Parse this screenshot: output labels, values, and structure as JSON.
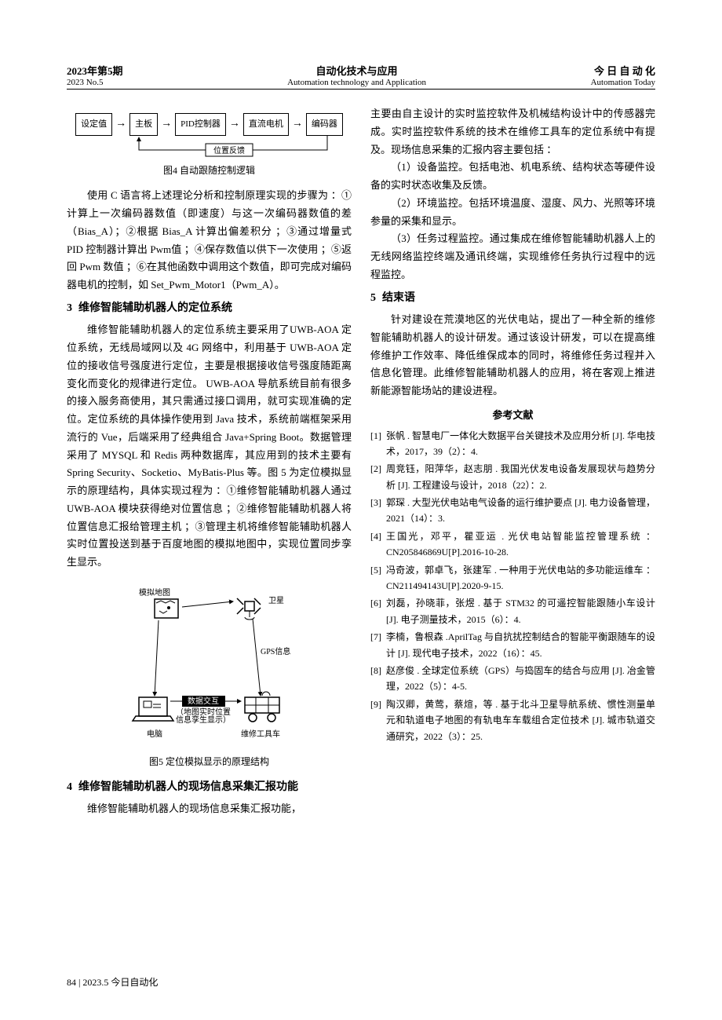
{
  "header": {
    "left_line1": "2023年第5期",
    "left_line2": "2023 No.5",
    "center_line1": "自动化技术与应用",
    "center_line2": "Automation technology and Application",
    "right_line1": "今 日 自 动 化",
    "right_line2": "Automation Today"
  },
  "fig4": {
    "boxes": [
      "设定值",
      "主板",
      "PID控制器",
      "直流电机",
      "编码器"
    ],
    "feedback_label": "位置反馈",
    "caption": "图4   自动跟随控制逻辑"
  },
  "col_left": {
    "p1": "使用 C 语言将上述理论分析和控制原理实现的步骤为 ：①计算上一次编码器数值（即速度）与这一次编码器数值的差（Bias_A）；②根据 Bias_A 计算出偏差积分 ；③通过增量式 PID 控制器计算出 Pwm值 ；④保存数值以供下一次使用 ；⑤返回 Pwm 数值 ；⑥在其他函数中调用这个数值，即可完成对编码器电机的控制，如 Set_Pwm_Motor1（Pwm_A）。",
    "sec3_num": "3",
    "sec3_title": "维修智能辅助机器人的定位系统",
    "p2": "维修智能辅助机器人的定位系统主要采用了UWB-AOA 定位系统，无线局域网以及 4G 网络中，利用基于 UWB-AOA 定位的接收信号强度进行定位，主要是根据接收信号强度随距离变化而变化的规律进行定位。 UWB-AOA 导航系统目前有很多的接入服务商使用，其只需通过接口调用，就可实现准确的定位。定位系统的具体操作使用到 Java 技术，系统前端框架采用流行的 Vue，后端采用了经典组合 Java+Spring Boot。数据管理采用了 MYSQL 和 Redis 两种数据库，其应用到的技术主要有 Spring Security、Socketio、MyBatis-Plus 等。图 5 为定位模拟显示的原理结构，具体实现过程为 ：①维修智能辅助机器人通过 UWB-AOA 模块获得绝对位置信息 ；②维修智能辅助机器人将位置信息汇报给管理主机 ；③管理主机将维修智能辅助机器人实时位置投送到基于百度地图的模拟地图中，实现位置同步孪生显示。",
    "sec4_num": "4",
    "sec4_title": "维修智能辅助机器人的现场信息采集汇报功能",
    "p3": "维修智能辅助机器人的现场信息采集汇报功能，"
  },
  "fig5": {
    "labels": {
      "map": "模拟地图",
      "sat": "卫星",
      "gps": "GPS信息",
      "exchange": "数据交互",
      "note": "（地图实时位置\n信息孪生显示）",
      "pc": "电脑",
      "cart": "维修工具车"
    },
    "caption": "图5   定位模拟显示的原理结构"
  },
  "col_right": {
    "p1": "主要由自主设计的实时监控软件及机械结构设计中的传感器完成。实时监控软件系统的技术在维修工具车的定位系统中有提及。现场信息采集的汇报内容主要包括 ：",
    "p2": "（1）设备监控。包括电池、机电系统、结构状态等硬件设备的实时状态收集及反馈。",
    "p3": "（2）环境监控。包括环境温度、湿度、风力、光照等环境参量的采集和显示。",
    "p4": "（3）任务过程监控。通过集成在维修智能辅助机器人上的无线网络监控终端及通讯终端，实现维修任务执行过程中的远程监控。",
    "sec5_num": "5",
    "sec5_title": "结束语",
    "p5": "针对建设在荒漠地区的光伏电站，提出了一种全新的维修智能辅助机器人的设计研发。通过该设计研发，可以在提高维修维护工作效率、降低维保成本的同时，将维修任务过程并入信息化管理。此维修智能辅助机器人的应用，将在客观上推进新能源智能场站的建设进程。",
    "refs_title": "参考文献"
  },
  "references": [
    {
      "n": "[1]",
      "t": "张帆 . 智慧电厂一体化大数据平台关键技术及应用分析 [J]. 华电技术，2017，39（2）：4."
    },
    {
      "n": "[2]",
      "t": "周竞钰，阳萍华，赵志朋 . 我国光伏发电设备发展现状与趋势分析 [J]. 工程建设与设计，2018（22）：2."
    },
    {
      "n": "[3]",
      "t": "郭琛 . 大型光伏电站电气设备的运行维护要点 [J]. 电力设备管理，2021（14）：3."
    },
    {
      "n": "[4]",
      "t": "王国光，邓平，瞿亚运 . 光伏电站智能监控管理系统 ：CN205846869U[P].2016-10-28."
    },
    {
      "n": "[5]",
      "t": "冯奇波，郭卓飞，张建军 . 一种用于光伏电站的多功能运维车 ：CN211494143U[P].2020-9-15."
    },
    {
      "n": "[6]",
      "t": "刘磊，孙晓菲，张煜 . 基于 STM32 的可遥控智能跟随小车设计 [J]. 电子测量技术，2015（6）：4."
    },
    {
      "n": "[7]",
      "t": "李楠，鲁根森 .AprilTag 与自抗扰控制结合的智能平衡跟随车的设计 [J]. 现代电子技术，2022（16）：45."
    },
    {
      "n": "[8]",
      "t": "赵彦俊 . 全球定位系统（GPS）与捣固车的结合与应用 [J]. 冶金管理，2022（5）：4-5."
    },
    {
      "n": "[9]",
      "t": "陶汉卿，黄莺，蔡煊，等 . 基于北斗卫星导航系统、惯性测量单元和轨道电子地图的有轨电车车载组合定位技术 [J]. 城市轨道交通研究，2022（3）：25."
    }
  ],
  "footer": "84   |   2023.5   今日自动化"
}
